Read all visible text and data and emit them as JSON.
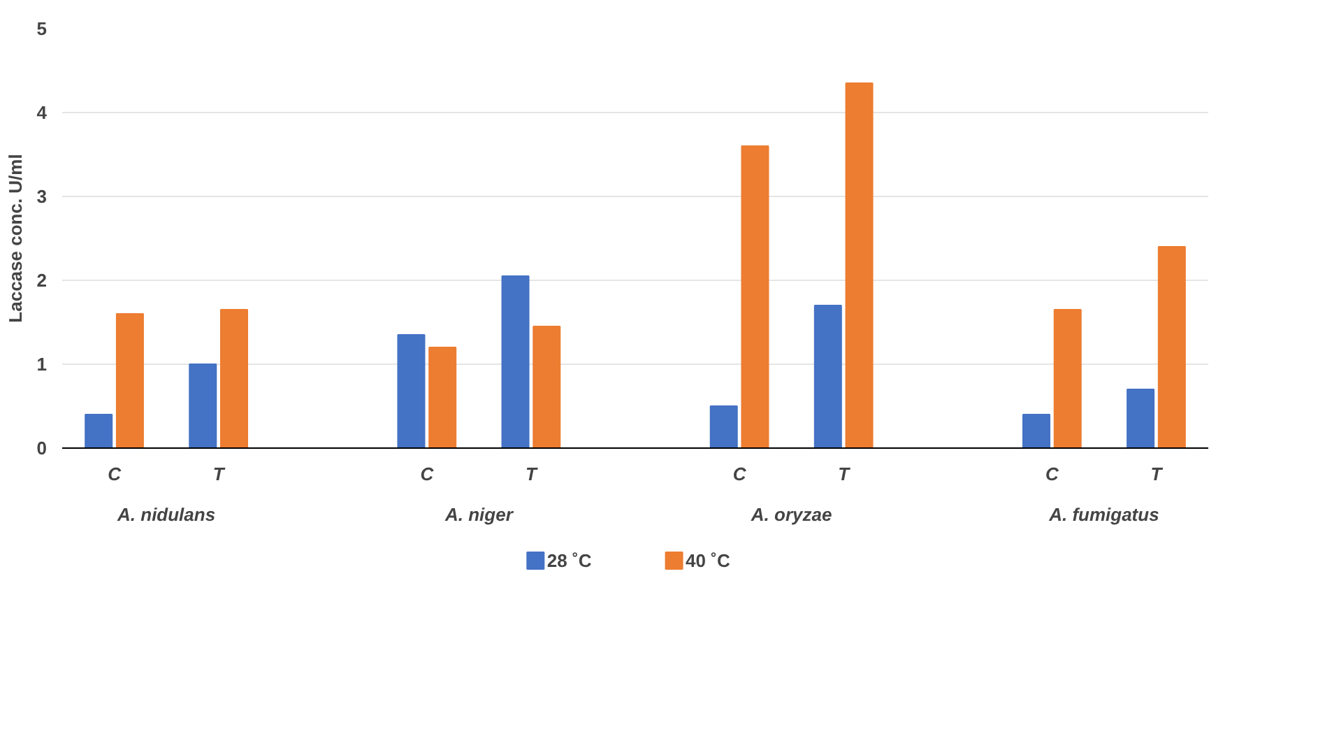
{
  "chart_data": {
    "type": "bar",
    "ylabel": "Laccase conc. U/ml",
    "categories": [
      "C",
      "T",
      null,
      "C",
      "T",
      null,
      "C",
      "T",
      null,
      "C",
      "T"
    ],
    "series": [
      {
        "name": "28 ˚C",
        "color": "#4472c4",
        "values": [
          0.4,
          1.0,
          null,
          1.35,
          2.05,
          null,
          0.5,
          1.7,
          null,
          0.4,
          0.7
        ]
      },
      {
        "name": "40 ˚C",
        "color": "#ed7d31",
        "values": [
          1.6,
          1.65,
          null,
          1.2,
          1.45,
          null,
          3.6,
          4.35,
          null,
          1.65,
          2.4
        ]
      }
    ],
    "annotations": [
      "A. nidulans",
      "A. niger",
      "A. oryzae",
      "A. fumigatus"
    ],
    "ylim": [
      0,
      5
    ],
    "yticks": [
      0,
      1,
      2,
      3,
      4,
      5
    ],
    "grid": "y",
    "legend": "bottom"
  }
}
